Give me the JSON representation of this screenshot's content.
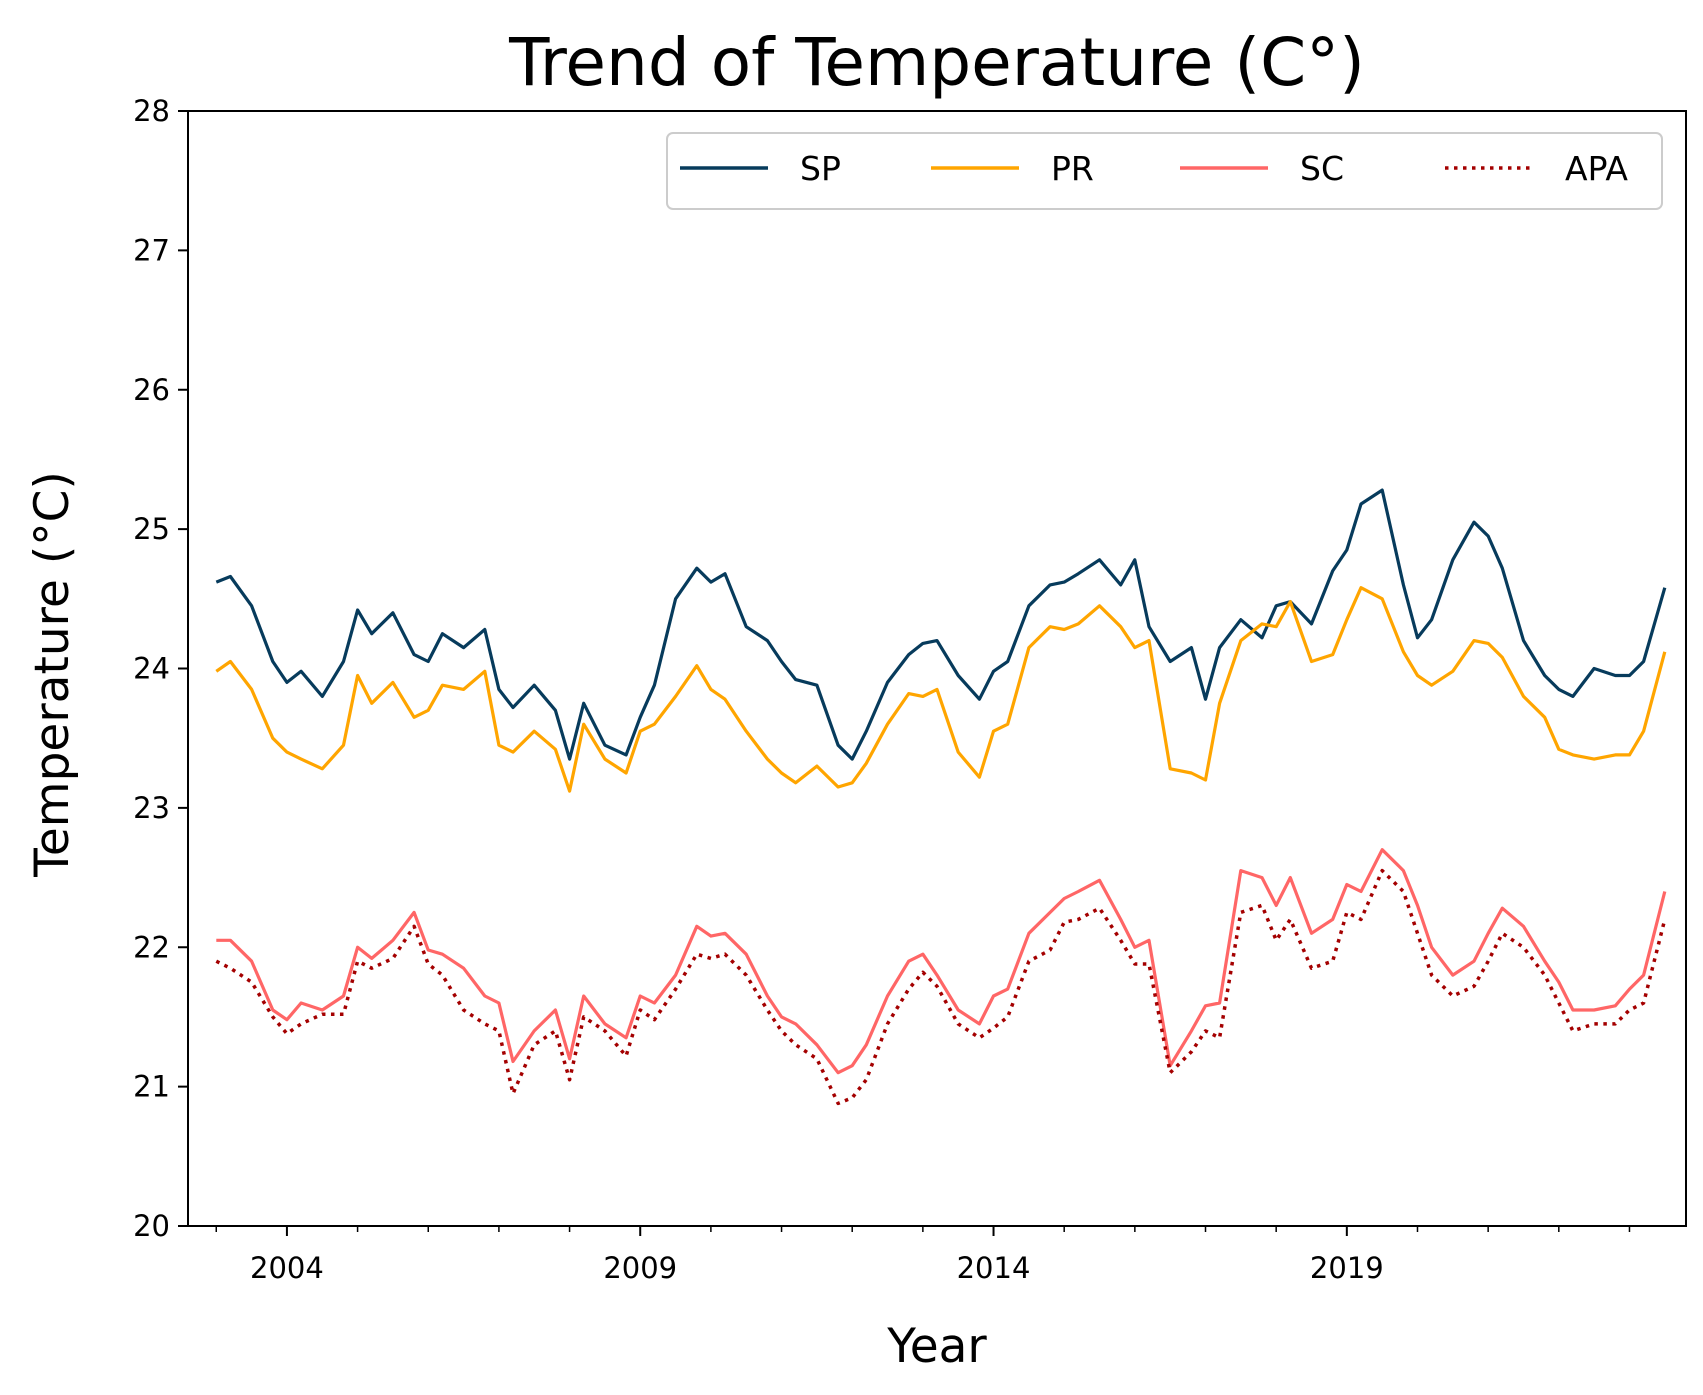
{
  "chart_data": {
    "type": "line",
    "title": "Trend of Temperature (C°)",
    "xlabel": "Year",
    "ylabel": "Temperature (°C)",
    "ylim": [
      20,
      28
    ],
    "xlim": [
      2002.6,
      2023.8
    ],
    "yticks": [
      20,
      21,
      22,
      23,
      24,
      25,
      26,
      27,
      28
    ],
    "xticks": [
      2004,
      2009,
      2014,
      2019
    ],
    "legend": {
      "placement": "top-right",
      "columns": 4
    },
    "grid": false,
    "series": [
      {
        "name": "SP",
        "color": "#073b5c",
        "style": "solid",
        "x": [
          2003.0,
          2003.2,
          2003.5,
          2003.8,
          2004.0,
          2004.2,
          2004.5,
          2004.8,
          2005.0,
          2005.2,
          2005.5,
          2005.8,
          2006.0,
          2006.2,
          2006.5,
          2006.8,
          2007.0,
          2007.2,
          2007.5,
          2007.8,
          2008.0,
          2008.2,
          2008.5,
          2008.8,
          2009.0,
          2009.2,
          2009.5,
          2009.8,
          2010.0,
          2010.2,
          2010.5,
          2010.8,
          2011.0,
          2011.2,
          2011.5,
          2011.8,
          2012.0,
          2012.2,
          2012.5,
          2012.8,
          2013.0,
          2013.2,
          2013.5,
          2013.8,
          2014.0,
          2014.2,
          2014.5,
          2014.8,
          2015.0,
          2015.2,
          2015.5,
          2015.8,
          2016.0,
          2016.2,
          2016.5,
          2016.8,
          2017.0,
          2017.2,
          2017.5,
          2017.8,
          2018.0,
          2018.2,
          2018.5,
          2018.8,
          2019.0,
          2019.2,
          2019.5,
          2019.8,
          2020.0,
          2020.2,
          2020.5,
          2020.8,
          2021.0,
          2021.2,
          2021.5,
          2021.8,
          2022.0,
          2022.2,
          2022.5,
          2022.8,
          2023.0,
          2023.2,
          2023.5
        ],
        "y": [
          24.62,
          24.66,
          24.45,
          24.05,
          23.9,
          23.98,
          23.8,
          24.05,
          24.42,
          24.25,
          24.4,
          24.1,
          24.05,
          24.25,
          24.15,
          24.28,
          23.85,
          23.72,
          23.88,
          23.7,
          23.35,
          23.75,
          23.45,
          23.38,
          23.65,
          23.88,
          24.5,
          24.72,
          24.62,
          24.68,
          24.3,
          24.2,
          24.05,
          23.92,
          23.88,
          23.45,
          23.35,
          23.55,
          23.9,
          24.1,
          24.18,
          24.2,
          23.95,
          23.78,
          23.98,
          24.05,
          24.45,
          24.6,
          24.62,
          24.68,
          24.78,
          24.6,
          24.78,
          24.3,
          24.05,
          24.15,
          23.78,
          24.15,
          24.35,
          24.22,
          24.45,
          24.48,
          24.32,
          24.7,
          24.85,
          25.18,
          25.28,
          24.6,
          24.22,
          24.35,
          24.78,
          25.05,
          24.95,
          24.72,
          24.2,
          23.95,
          23.85,
          23.8,
          24.0,
          23.95,
          23.95,
          24.05,
          24.58
        ]
      },
      {
        "name": "PR",
        "color": "#ffa500",
        "style": "solid",
        "x": [
          2003.0,
          2003.2,
          2003.5,
          2003.8,
          2004.0,
          2004.2,
          2004.5,
          2004.8,
          2005.0,
          2005.2,
          2005.5,
          2005.8,
          2006.0,
          2006.2,
          2006.5,
          2006.8,
          2007.0,
          2007.2,
          2007.5,
          2007.8,
          2008.0,
          2008.2,
          2008.5,
          2008.8,
          2009.0,
          2009.2,
          2009.5,
          2009.8,
          2010.0,
          2010.2,
          2010.5,
          2010.8,
          2011.0,
          2011.2,
          2011.5,
          2011.8,
          2012.0,
          2012.2,
          2012.5,
          2012.8,
          2013.0,
          2013.2,
          2013.5,
          2013.8,
          2014.0,
          2014.2,
          2014.5,
          2014.8,
          2015.0,
          2015.2,
          2015.5,
          2015.8,
          2016.0,
          2016.2,
          2016.5,
          2016.8,
          2017.0,
          2017.2,
          2017.5,
          2017.8,
          2018.0,
          2018.2,
          2018.5,
          2018.8,
          2019.0,
          2019.2,
          2019.5,
          2019.8,
          2020.0,
          2020.2,
          2020.5,
          2020.8,
          2021.0,
          2021.2,
          2021.5,
          2021.8,
          2022.0,
          2022.2,
          2022.5,
          2022.8,
          2023.0,
          2023.2,
          2023.5
        ],
        "y": [
          23.98,
          24.05,
          23.85,
          23.5,
          23.4,
          23.35,
          23.28,
          23.45,
          23.95,
          23.75,
          23.9,
          23.65,
          23.7,
          23.88,
          23.85,
          23.98,
          23.45,
          23.4,
          23.55,
          23.42,
          23.12,
          23.6,
          23.35,
          23.25,
          23.55,
          23.6,
          23.8,
          24.02,
          23.85,
          23.78,
          23.55,
          23.35,
          23.25,
          23.18,
          23.3,
          23.15,
          23.18,
          23.32,
          23.6,
          23.82,
          23.8,
          23.85,
          23.4,
          23.22,
          23.55,
          23.6,
          24.15,
          24.3,
          24.28,
          24.32,
          24.45,
          24.3,
          24.15,
          24.2,
          23.28,
          23.25,
          23.2,
          23.75,
          24.2,
          24.32,
          24.3,
          24.48,
          24.05,
          24.1,
          24.35,
          24.58,
          24.5,
          24.12,
          23.95,
          23.88,
          23.98,
          24.2,
          24.18,
          24.08,
          23.8,
          23.65,
          23.42,
          23.38,
          23.35,
          23.38,
          23.38,
          23.55,
          24.12
        ]
      },
      {
        "name": "SC",
        "color": "#ff6666",
        "style": "solid",
        "x": [
          2003.0,
          2003.2,
          2003.5,
          2003.8,
          2004.0,
          2004.2,
          2004.5,
          2004.8,
          2005.0,
          2005.2,
          2005.5,
          2005.8,
          2006.0,
          2006.2,
          2006.5,
          2006.8,
          2007.0,
          2007.2,
          2007.5,
          2007.8,
          2008.0,
          2008.2,
          2008.5,
          2008.8,
          2009.0,
          2009.2,
          2009.5,
          2009.8,
          2010.0,
          2010.2,
          2010.5,
          2010.8,
          2011.0,
          2011.2,
          2011.5,
          2011.8,
          2012.0,
          2012.2,
          2012.5,
          2012.8,
          2013.0,
          2013.2,
          2013.5,
          2013.8,
          2014.0,
          2014.2,
          2014.5,
          2014.8,
          2015.0,
          2015.2,
          2015.5,
          2015.8,
          2016.0,
          2016.2,
          2016.5,
          2016.8,
          2017.0,
          2017.2,
          2017.5,
          2017.8,
          2018.0,
          2018.2,
          2018.5,
          2018.8,
          2019.0,
          2019.2,
          2019.5,
          2019.8,
          2020.0,
          2020.2,
          2020.5,
          2020.8,
          2021.0,
          2021.2,
          2021.5,
          2021.8,
          2022.0,
          2022.2,
          2022.5,
          2022.8,
          2023.0,
          2023.2,
          2023.5
        ],
        "y": [
          22.05,
          22.05,
          21.9,
          21.55,
          21.48,
          21.6,
          21.55,
          21.65,
          22.0,
          21.92,
          22.05,
          22.25,
          21.98,
          21.95,
          21.85,
          21.65,
          21.6,
          21.18,
          21.4,
          21.55,
          21.2,
          21.65,
          21.45,
          21.35,
          21.65,
          21.6,
          21.8,
          22.15,
          22.08,
          22.1,
          21.95,
          21.65,
          21.5,
          21.45,
          21.3,
          21.1,
          21.15,
          21.3,
          21.65,
          21.9,
          21.95,
          21.8,
          21.55,
          21.45,
          21.65,
          21.7,
          22.1,
          22.25,
          22.35,
          22.4,
          22.48,
          22.2,
          22.0,
          22.05,
          21.15,
          21.4,
          21.58,
          21.6,
          22.55,
          22.5,
          22.3,
          22.5,
          22.1,
          22.2,
          22.45,
          22.4,
          22.7,
          22.55,
          22.3,
          22.0,
          21.8,
          21.9,
          22.1,
          22.28,
          22.15,
          21.9,
          21.75,
          21.55,
          21.55,
          21.58,
          21.7,
          21.8,
          22.4
        ]
      },
      {
        "name": "APA",
        "color": "#a40000",
        "style": "dotted",
        "x": [
          2003.0,
          2003.2,
          2003.5,
          2003.8,
          2004.0,
          2004.2,
          2004.5,
          2004.8,
          2005.0,
          2005.2,
          2005.5,
          2005.8,
          2006.0,
          2006.2,
          2006.5,
          2006.8,
          2007.0,
          2007.2,
          2007.5,
          2007.8,
          2008.0,
          2008.2,
          2008.5,
          2008.8,
          2009.0,
          2009.2,
          2009.5,
          2009.8,
          2010.0,
          2010.2,
          2010.5,
          2010.8,
          2011.0,
          2011.2,
          2011.5,
          2011.8,
          2012.0,
          2012.2,
          2012.5,
          2012.8,
          2013.0,
          2013.2,
          2013.5,
          2013.8,
          2014.0,
          2014.2,
          2014.5,
          2014.8,
          2015.0,
          2015.2,
          2015.5,
          2015.8,
          2016.0,
          2016.2,
          2016.5,
          2016.8,
          2017.0,
          2017.2,
          2017.5,
          2017.8,
          2018.0,
          2018.2,
          2018.5,
          2018.8,
          2019.0,
          2019.2,
          2019.5,
          2019.8,
          2020.0,
          2020.2,
          2020.5,
          2020.8,
          2021.0,
          2021.2,
          2021.5,
          2021.8,
          2022.0,
          2022.2,
          2022.5,
          2022.8,
          2023.0,
          2023.2,
          2023.5
        ],
        "y": [
          21.9,
          21.85,
          21.75,
          21.5,
          21.38,
          21.45,
          21.52,
          21.52,
          21.9,
          21.85,
          21.92,
          22.15,
          21.88,
          21.8,
          21.55,
          21.45,
          21.4,
          20.95,
          21.3,
          21.4,
          21.05,
          21.5,
          21.4,
          21.22,
          21.55,
          21.48,
          21.7,
          21.95,
          21.92,
          21.95,
          21.8,
          21.55,
          21.4,
          21.3,
          21.2,
          20.88,
          20.92,
          21.05,
          21.45,
          21.7,
          21.82,
          21.72,
          21.45,
          21.35,
          21.42,
          21.5,
          21.9,
          21.98,
          22.18,
          22.2,
          22.28,
          22.05,
          21.88,
          21.88,
          21.1,
          21.25,
          21.4,
          21.35,
          22.25,
          22.3,
          22.05,
          22.2,
          21.85,
          21.9,
          22.25,
          22.2,
          22.55,
          22.4,
          22.1,
          21.8,
          21.65,
          21.72,
          21.9,
          22.1,
          22.0,
          21.8,
          21.6,
          21.4,
          21.45,
          21.45,
          21.55,
          21.6,
          22.2
        ]
      }
    ]
  }
}
